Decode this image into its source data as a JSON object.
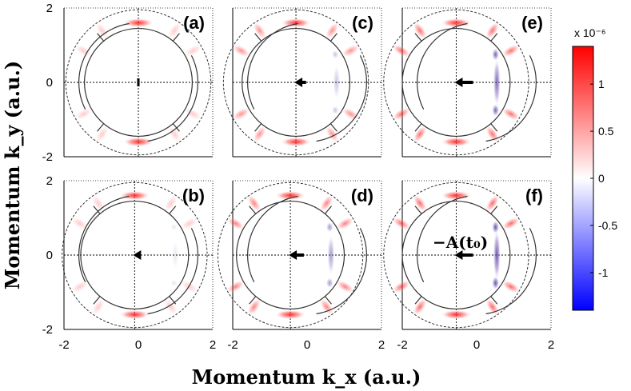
{
  "chart_data": {
    "type": "heatmap",
    "xlabel": "Momentum k_x (a.u.)",
    "ylabel": "Momentum k_y (a.u.)",
    "xlim": [
      -2,
      2
    ],
    "ylim": [
      -2,
      2
    ],
    "x_ticks": [
      "-2",
      "0",
      "2"
    ],
    "y_ticks": [
      "2",
      "0",
      "-2"
    ],
    "panels": [
      {
        "label": "(a)",
        "ring_center_x": 0.0,
        "arrow_x": 0.0,
        "arrow_length": 0.0,
        "lobe_strength": 0.0
      },
      {
        "label": "(b)",
        "ring_center_x": -0.1,
        "arrow_x": -0.1,
        "arrow_length": 0.15,
        "lobe_strength": 0.15
      },
      {
        "label": "(c)",
        "ring_center_x": -0.3,
        "arrow_x": -0.3,
        "arrow_length": 0.35,
        "lobe_strength": 0.35
      },
      {
        "label": "(d)",
        "ring_center_x": -0.45,
        "arrow_x": -0.45,
        "arrow_length": 0.45,
        "lobe_strength": 0.6
      },
      {
        "label": "(e)",
        "ring_center_x": -0.55,
        "arrow_x": -0.55,
        "arrow_length": 0.55,
        "lobe_strength": 0.9
      },
      {
        "label": "(f)",
        "ring_center_x": -0.55,
        "arrow_x": -0.55,
        "arrow_length": 0.55,
        "lobe_strength": 1.0
      }
    ],
    "annotation": "−A(t₀)",
    "colorbar": {
      "scale_label": "x 10⁻⁶",
      "range": [
        -1.4,
        1.4
      ],
      "ticks": [
        {
          "value": 1,
          "label": "1"
        },
        {
          "value": 0.5,
          "label": "0.5"
        },
        {
          "value": 0,
          "label": "0"
        },
        {
          "value": -0.5,
          "label": "-0.5"
        },
        {
          "value": -1,
          "label": "-1"
        }
      ],
      "colors": {
        "high": "#ff0000",
        "mid": "#ffffff",
        "low": "#0000ff"
      }
    }
  }
}
